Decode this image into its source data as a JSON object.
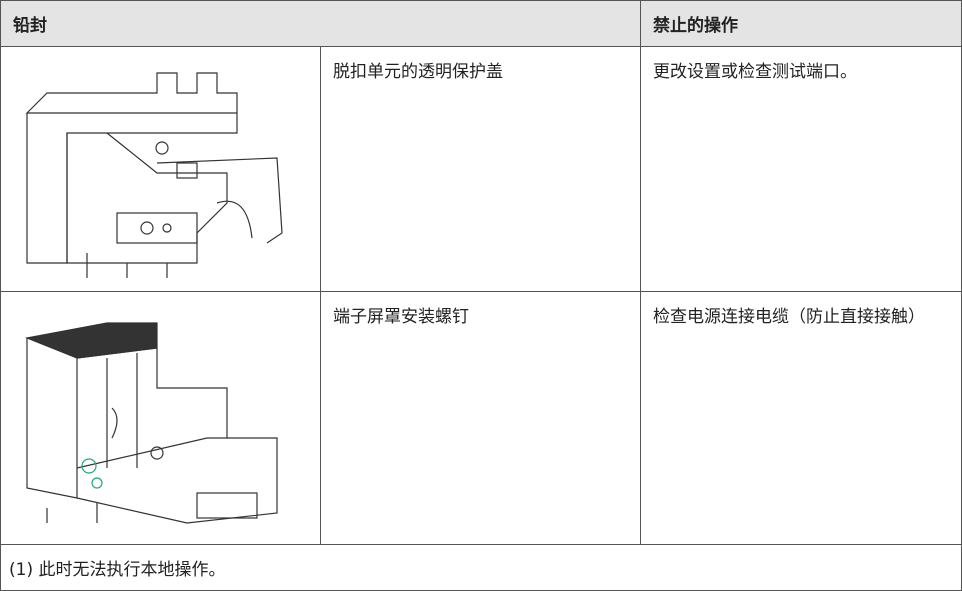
{
  "table": {
    "header": [
      "铅封",
      "禁止的操作"
    ],
    "rows": [
      {
        "seal": "脱扣单元的透明保护盖",
        "operation": "更改设置或检查测试端口。"
      },
      {
        "seal": "端子屏罩安装螺钉",
        "operation": "检查电源连接电缆（防止直接接触）"
      }
    ],
    "footnote": "(1) 此时无法执行本地操作。"
  }
}
